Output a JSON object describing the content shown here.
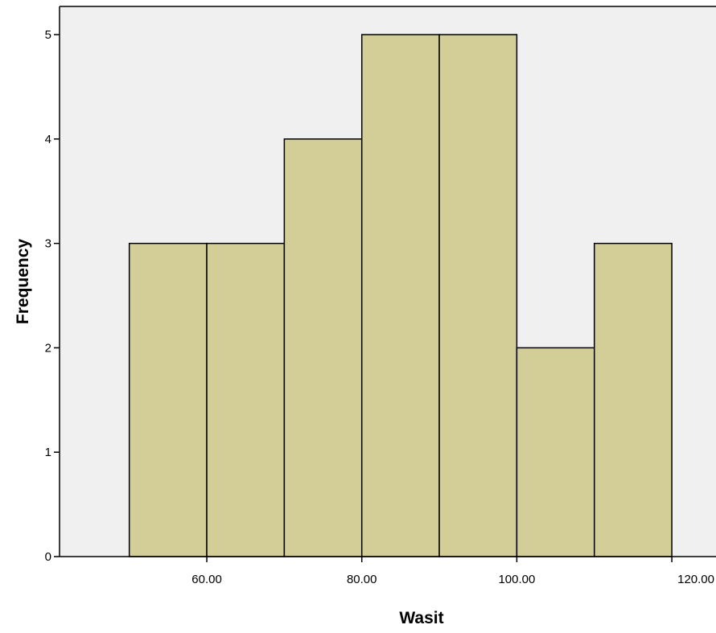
{
  "chart_data": {
    "type": "bar",
    "title": "",
    "xlabel": "Wasit",
    "ylabel": "Frequency",
    "bins": [
      {
        "start": 50,
        "end": 60,
        "value": 3
      },
      {
        "start": 60,
        "end": 70,
        "value": 3
      },
      {
        "start": 70,
        "end": 80,
        "value": 4
      },
      {
        "start": 80,
        "end": 90,
        "value": 5
      },
      {
        "start": 90,
        "end": 100,
        "value": 5
      },
      {
        "start": 100,
        "end": 110,
        "value": 2
      },
      {
        "start": 110,
        "end": 120,
        "value": 3
      }
    ],
    "xlim": [
      41,
      125.7
    ],
    "ylim": [
      0,
      5.27
    ],
    "xticks": [
      60,
      80,
      100,
      120
    ],
    "xtick_labels": [
      "60.00",
      "80.00",
      "100.00",
      "120.00"
    ],
    "yticks": [
      0,
      1,
      2,
      3,
      4,
      5
    ],
    "ytick_labels": [
      "0",
      "1",
      "2",
      "3",
      "4",
      "5"
    ],
    "grid": false,
    "legend": "none",
    "colors": {
      "plot_background": "#f0f0f0",
      "bar_fill": "#d3ce97",
      "bar_stroke": "#000000",
      "axis": "#000000"
    }
  }
}
